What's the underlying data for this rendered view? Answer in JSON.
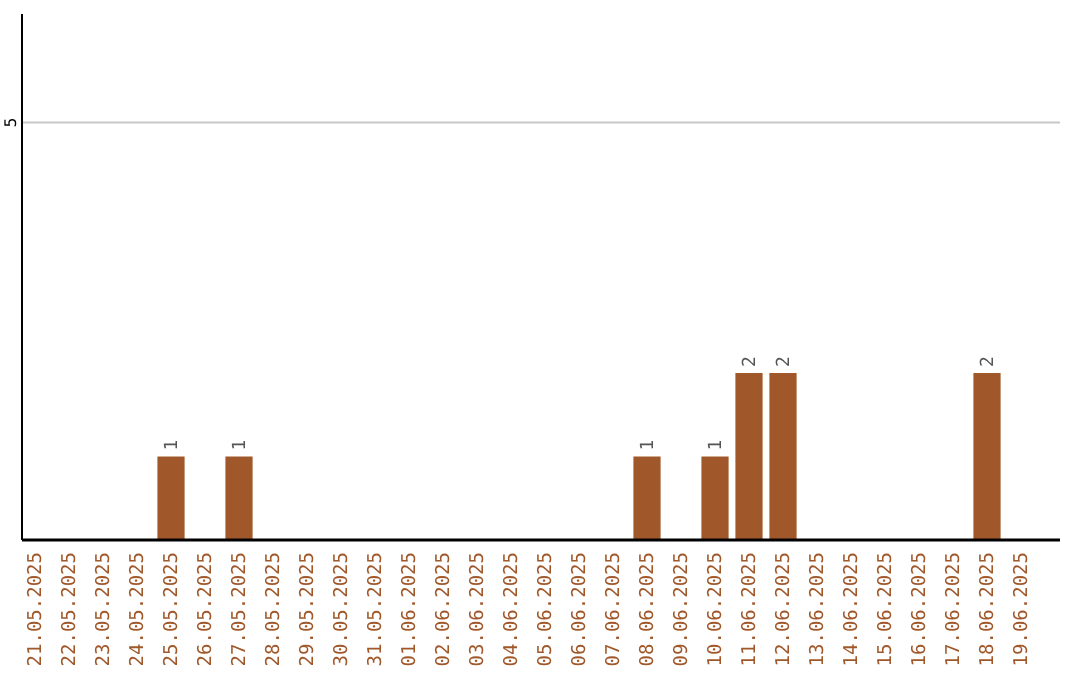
{
  "chart_data": {
    "type": "bar",
    "categories": [
      "21.05.2025",
      "22.05.2025",
      "23.05.2025",
      "24.05.2025",
      "25.05.2025",
      "26.05.2025",
      "27.05.2025",
      "28.05.2025",
      "29.05.2025",
      "30.05.2025",
      "31.05.2025",
      "01.06.2025",
      "02.06.2025",
      "03.06.2025",
      "04.06.2025",
      "05.06.2025",
      "06.06.2025",
      "07.06.2025",
      "08.06.2025",
      "09.06.2025",
      "10.06.2025",
      "11.06.2025",
      "12.06.2025",
      "13.06.2025",
      "14.06.2025",
      "15.06.2025",
      "16.06.2025",
      "17.06.2025",
      "18.06.2025",
      "19.06.2025"
    ],
    "values": [
      0,
      0,
      0,
      0,
      1,
      0,
      1,
      0,
      0,
      0,
      0,
      0,
      0,
      0,
      0,
      0,
      0,
      0,
      1,
      0,
      1,
      2,
      2,
      0,
      0,
      0,
      0,
      0,
      2,
      0
    ],
    "value_labels": [
      null,
      null,
      null,
      null,
      "1",
      null,
      "1",
      null,
      null,
      null,
      null,
      null,
      null,
      null,
      null,
      null,
      null,
      null,
      "1",
      null,
      "1",
      "2",
      "2",
      null,
      null,
      null,
      null,
      null,
      "2",
      null
    ],
    "color": "#a0582a",
    "ylim": [
      0,
      6.3
    ],
    "yticks": [
      5
    ],
    "grid": "y"
  }
}
